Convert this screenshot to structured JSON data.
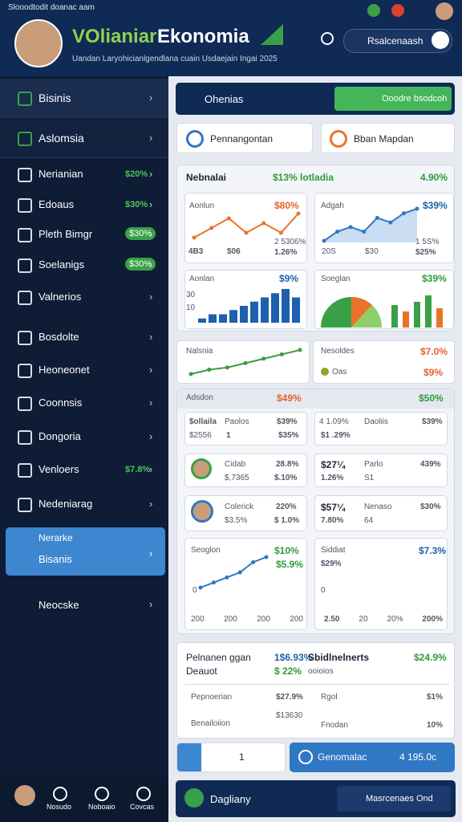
{
  "status_bar": {
    "text": "Slooodtodit doanac aam"
  },
  "header": {
    "title_a": "VOlianiar",
    "title_b": "Ekonomia",
    "subtitle": "Uandan Laryohicianlgendlana cuain Usdaejain Ingai 2025",
    "search_placeholder": "Rsalcenaash"
  },
  "sidebar": {
    "items": [
      {
        "label": "Bisinis",
        "top": true
      },
      {
        "label": "Aslomsia",
        "top": true
      },
      {
        "label": "Nerianian",
        "value": "$20%"
      },
      {
        "label": "Edoaus",
        "value": "$30%"
      },
      {
        "label": "Pleth Bimgr",
        "badge": "$30%"
      },
      {
        "label": "Soelanigs",
        "badge": "$30%"
      },
      {
        "label": "Valnerios"
      },
      {
        "label": "Bosdolte"
      },
      {
        "label": "Heoneonet"
      },
      {
        "label": "Coonnsis"
      },
      {
        "label": "Dongoria"
      },
      {
        "label": "Venloers",
        "value": "$7.8%"
      },
      {
        "label": "Nedeniarag"
      }
    ],
    "active": {
      "line1": "Nerarke",
      "line2": "Bisanis"
    },
    "last": {
      "label": "Neocske"
    }
  },
  "bottom_nav": [
    "Nosudo",
    "Noboaio",
    "Covcas"
  ],
  "main": {
    "topbar": {
      "title": "Ohenias",
      "button": "Ooodre bsodcoh"
    },
    "profiles": [
      "Pennangontan",
      "Bban Mapdan"
    ],
    "overview": {
      "title": "Nebnalai",
      "mid": "$13% lotladia",
      "right": "4.90%",
      "c1": {
        "title": "Aonlun",
        "value": "$80%",
        "l1": "4B3",
        "l2": "$06",
        "l3": "2 5306%",
        "l4": "1.26%"
      },
      "c2": {
        "title": "Adgah",
        "value": "$39%",
        "l1": "20S",
        "l2": "$30",
        "l3": "1 5S%",
        "l4": "$25%"
      },
      "c3": {
        "title": "Aonlan",
        "value": "$9%",
        "ax1": "30",
        "ax2": "10"
      },
      "c4": {
        "title": "Soeglan",
        "value": "$39%"
      }
    },
    "trend": {
      "title": "Nalsnia"
    },
    "notes": {
      "title": "Nesoldes",
      "value": "$7.0%",
      "sub": "Oas",
      "sub_value": "$9%"
    },
    "detail": {
      "title": "Adsdon",
      "mid": "$49%",
      "right": "$50%",
      "r1": {
        "a": "$ollaila",
        "b": "Paolos",
        "c": "$39%",
        "d": "$2556",
        "e": "1",
        "f": "$35%",
        "g": "4 1.09%",
        "h": "Daoliis",
        "i": "$39%",
        "j": "$1 .29%"
      },
      "r2": {
        "a": "Cidab",
        "b": "28.8%",
        "c": "$,7365",
        "d": "$.10%",
        "e": "$27¼",
        "f": "Parlo",
        "g": "439%",
        "h": "1.26%",
        "i": "S1"
      },
      "r3": {
        "a": "Colerick",
        "b": "220%",
        "c": "$3.5%",
        "d": "$ 1.0%",
        "e": "$57¼",
        "f": "Nenaso",
        "g": "$30%",
        "h": "7.80%",
        "i": "64"
      },
      "g1": {
        "title": "Seoglon",
        "v1": "$10%",
        "v2": "$5.9%",
        "ax": "0",
        "x": [
          "200",
          "200",
          "200",
          "200"
        ]
      },
      "g2": {
        "title": "Siddiat",
        "v1": "$7.3%",
        "v2": "$29%",
        "ax": "0",
        "x": [
          "2.50",
          "20",
          "20%",
          "200%"
        ]
      }
    },
    "summary": {
      "title": "Pelnanen ggan",
      "v1": "1$6.93%",
      "title2": "Sbidlnelnerts",
      "v2": "$24.9%",
      "sub": "Deauot",
      "sub_v": "$ 22%",
      "sub_t": "ooioios",
      "rows": [
        [
          "Pepnoerian",
          "$27.9%",
          "Rgol",
          "$1%"
        ],
        [
          "Benailoiion",
          "$13630",
          "Fnodan",
          "10%"
        ]
      ]
    },
    "actions": {
      "left": "1",
      "right": "Genomalac",
      "right_value": "4 195.0c"
    },
    "footer": {
      "title": "Dagliany",
      "button": "Masrcenaes Ond"
    },
    "charts": {
      "c1": {
        "kind": "line",
        "color": "#e8742a",
        "values": [
          2,
          4,
          6,
          3,
          5,
          3,
          7
        ]
      },
      "c2": {
        "kind": "area",
        "color": "#2f78c4",
        "values": [
          1,
          3,
          4,
          3,
          6,
          5,
          7,
          8
        ]
      },
      "c3": {
        "kind": "bar",
        "color": "#1e5fae",
        "values": [
          1,
          2,
          2,
          3,
          4,
          5,
          6,
          7,
          8,
          6
        ]
      },
      "trend": {
        "kind": "line",
        "color": "#3a9a3e",
        "values": [
          1,
          2,
          2.5,
          3.5,
          4.5,
          5.5,
          6.5
        ]
      },
      "g1": {
        "kind": "line",
        "color": "#2f78c4",
        "values": [
          1,
          2,
          3,
          4,
          6,
          7
        ]
      }
    }
  }
}
